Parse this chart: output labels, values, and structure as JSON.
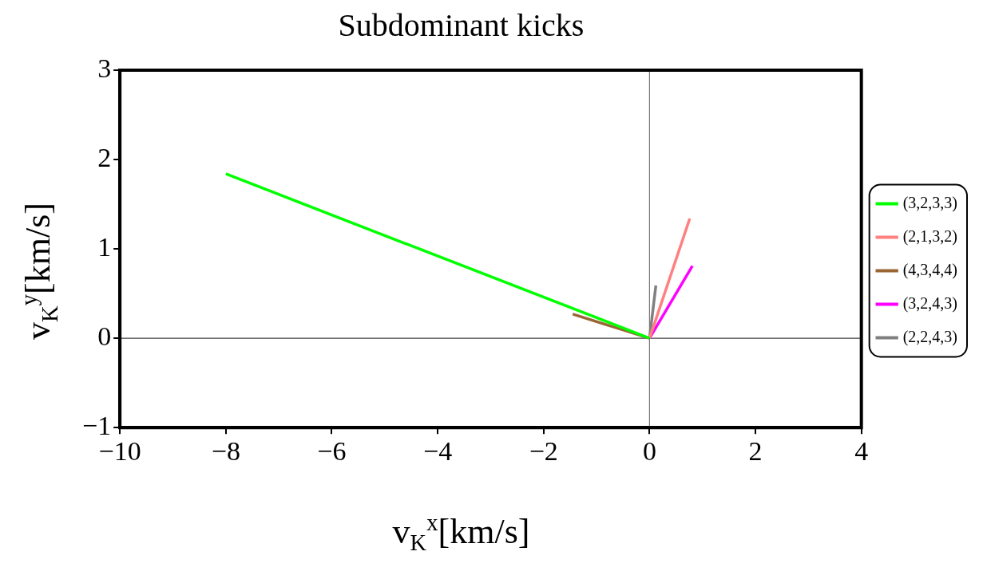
{
  "chart_data": {
    "type": "line",
    "title": "Subdominant kicks",
    "xlabel": "v$_{K}$$^{x}$[km/s]",
    "ylabel": "v$_{K}$$^{y}$[km/s]",
    "series": [
      {
        "name": "(3,2,3,3)",
        "color": "#00ff00",
        "x": [
          0,
          -8.0
        ],
        "values": [
          0,
          1.84
        ]
      },
      {
        "name": "(2,1,3,2)",
        "color": "#ff8080",
        "x": [
          0,
          0.76
        ],
        "values": [
          0,
          1.34
        ]
      },
      {
        "name": "(4,3,4,4)",
        "color": "#996633",
        "x": [
          0,
          -1.45
        ],
        "values": [
          0,
          0.27
        ]
      },
      {
        "name": "(3,2,4,3)",
        "color": "#ff00ff",
        "x": [
          0,
          0.81
        ],
        "values": [
          0,
          0.81
        ]
      },
      {
        "name": "(2,2,4,3)",
        "color": "#808080",
        "x": [
          0,
          0.12
        ],
        "values": [
          0,
          0.59
        ]
      }
    ],
    "xlim": [
      -10,
      4
    ],
    "xticks": [
      -10,
      -8,
      -6,
      -4,
      -2,
      0,
      2,
      4
    ],
    "ylim": [
      -1,
      3
    ],
    "yticks": [
      -1,
      0,
      1,
      2,
      3
    ],
    "ref_lines": [
      {
        "axis": "x",
        "value": 0,
        "color": "#777777"
      },
      {
        "axis": "y",
        "value": 0,
        "color": "#444444"
      }
    ],
    "grid": false,
    "legend": "right",
    "marker": "none",
    "line_style": "solid"
  }
}
